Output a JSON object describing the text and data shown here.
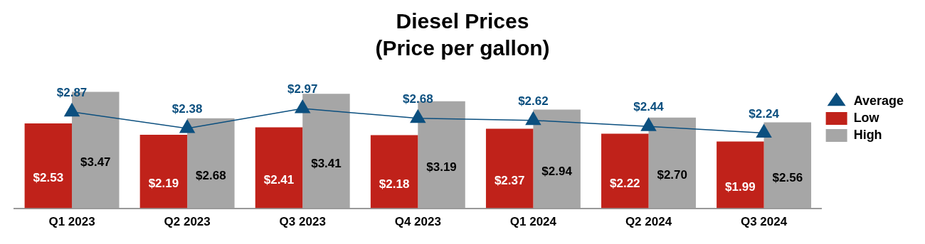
{
  "chart_data": {
    "type": "bar",
    "title": "Diesel Prices",
    "subtitle": "(Price per gallon)",
    "categories": [
      "Q1 2023",
      "Q2 2023",
      "Q3 2023",
      "Q4 2023",
      "Q1 2024",
      "Q2 2024",
      "Q3 2024"
    ],
    "series": [
      {
        "name": "Low",
        "color": "#c0221a",
        "values": [
          2.53,
          2.19,
          2.41,
          2.18,
          2.37,
          2.22,
          1.99
        ],
        "value_labels": [
          "$2.53",
          "$2.19",
          "$2.41",
          "$2.18",
          "$2.37",
          "$2.22",
          "$1.99"
        ]
      },
      {
        "name": "High",
        "color": "#a6a6a6",
        "values": [
          3.47,
          2.68,
          3.41,
          3.19,
          2.94,
          2.7,
          2.56
        ],
        "value_labels": [
          "$3.47",
          "$2.68",
          "$3.41",
          "$3.19",
          "$2.94",
          "$2.70",
          "$2.56"
        ]
      },
      {
        "name": "Average",
        "type": "line",
        "color": "#0b4f7f",
        "values": [
          2.87,
          2.38,
          2.97,
          2.68,
          2.62,
          2.44,
          2.24
        ],
        "value_labels": [
          "$2.87",
          "$2.38",
          "$2.97",
          "$2.68",
          "$2.62",
          "$2.44",
          "$2.24"
        ]
      }
    ],
    "marker": "triangle",
    "grid": false,
    "legend": "right",
    "tick_labels": "x"
  }
}
